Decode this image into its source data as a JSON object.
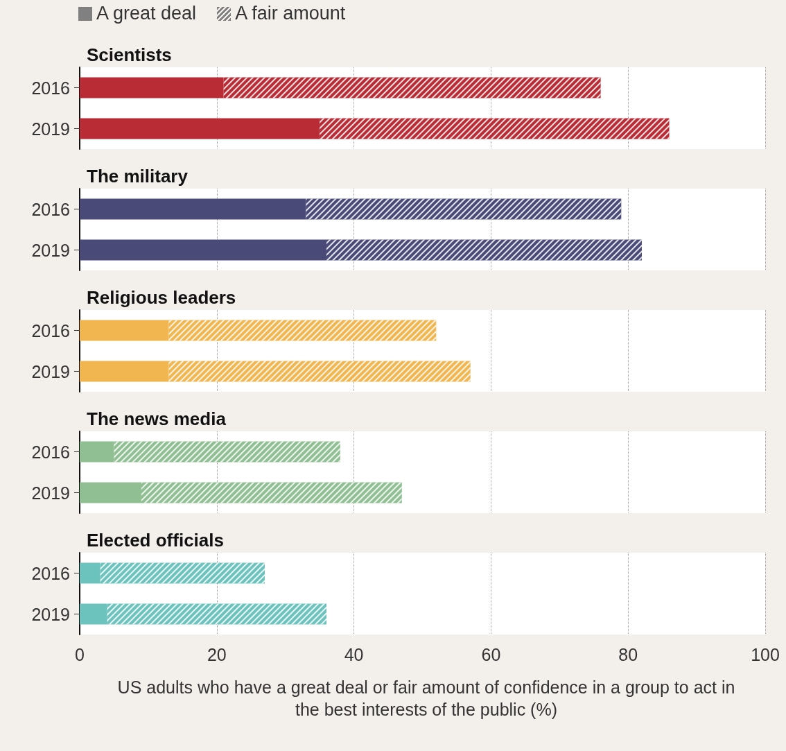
{
  "chart_data": [
    {
      "type": "bar",
      "title": "Scientists",
      "orientation": "horizontal",
      "stacked": true,
      "categories": [
        "2016",
        "2019"
      ],
      "xlim": [
        0,
        100
      ],
      "xticks": [
        0,
        20,
        40,
        60,
        80,
        100
      ],
      "grid": "x",
      "tick_labels": "y",
      "legend": "top left",
      "series": [
        {
          "name": "A great deal",
          "color": "#808080",
          "colors": [
            "#b92b35",
            "#b92b35"
          ],
          "values": [
            21,
            35
          ]
        },
        {
          "name": "A fair amount",
          "color": "#808080",
          "colors": [
            "#b92b35",
            "#b92b35"
          ],
          "values": [
            55,
            51
          ]
        }
      ]
    },
    {
      "type": "bar",
      "title": "The military",
      "orientation": "horizontal",
      "stacked": true,
      "categories": [
        "2016",
        "2019"
      ],
      "xlim": [
        0,
        100
      ],
      "xticks": [
        0,
        20,
        40,
        60,
        80,
        100
      ],
      "grid": "x",
      "tick_labels": "y",
      "series": [
        {
          "color": "#4a4a78",
          "colors": [
            "#4a4a78",
            "#4a4a78"
          ],
          "values": [
            33,
            36
          ]
        },
        {
          "color": "#4a4a78",
          "colors": [
            "#4a4a78",
            "#4a4a78"
          ],
          "values": [
            46,
            46
          ]
        }
      ]
    },
    {
      "type": "bar",
      "title": "Religious leaders",
      "orientation": "horizontal",
      "stacked": true,
      "categories": [
        "2016",
        "2019"
      ],
      "xlim": [
        0,
        100
      ],
      "xticks": [
        0,
        20,
        40,
        60,
        80,
        100
      ],
      "grid": "x",
      "tick_labels": "y",
      "series": [
        {
          "color": "#f2b650",
          "colors": [
            "#f2b650",
            "#f2b650"
          ],
          "values": [
            13,
            13
          ]
        },
        {
          "color": "#f2b650",
          "colors": [
            "#f2b650",
            "#f2b650"
          ],
          "values": [
            39,
            44
          ]
        }
      ]
    },
    {
      "type": "bar",
      "title": "The news media",
      "orientation": "horizontal",
      "stacked": true,
      "categories": [
        "2016",
        "2019"
      ],
      "xlim": [
        0,
        100
      ],
      "xticks": [
        0,
        20,
        40,
        60,
        80,
        100
      ],
      "grid": "x",
      "tick_labels": "y",
      "series": [
        {
          "color": "#8fbf92",
          "colors": [
            "#8fbf92",
            "#8fbf92"
          ],
          "values": [
            5,
            9
          ]
        },
        {
          "color": "#8fbf92",
          "colors": [
            "#8fbf92",
            "#8fbf92"
          ],
          "values": [
            33,
            38
          ]
        }
      ]
    },
    {
      "type": "bar",
      "title": "Elected officials",
      "orientation": "horizontal",
      "stacked": true,
      "categories": [
        "2016",
        "2019"
      ],
      "xlim": [
        0,
        100
      ],
      "xticks": [
        0,
        20,
        40,
        60,
        80,
        100
      ],
      "grid": "x",
      "xlabel": "US adults who have a great deal or fair amount of confidence in a group to act in the best interests of the public (%)",
      "series": [
        {
          "color": "#6cc3bd",
          "colors": [
            "#6cc3bd",
            "#6cc3bd"
          ],
          "values": [
            3,
            4
          ]
        },
        {
          "color": "#6cc3bd",
          "colors": [
            "#6cc3bd",
            "#6cc3bd"
          ],
          "values": [
            24,
            32
          ]
        }
      ]
    }
  ]
}
